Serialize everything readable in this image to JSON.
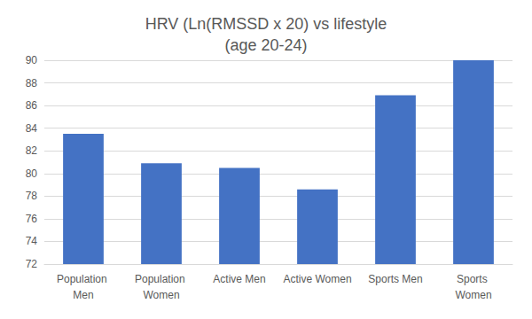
{
  "chart_data": {
    "type": "bar",
    "title": "HRV (Ln(RMSSD x 20) vs lifestyle\n(age 20-24)",
    "categories": [
      "Population Men",
      "Population Women",
      "Active Men",
      "Active Women",
      "Sports Men",
      "Sports Women"
    ],
    "values": [
      83.5,
      80.9,
      80.5,
      78.6,
      86.9,
      90.0
    ],
    "color": "#4472c4",
    "ylim": [
      72,
      90
    ],
    "yticks": [
      72,
      74,
      76,
      78,
      80,
      82,
      84,
      86,
      88,
      90
    ],
    "grid": true
  }
}
